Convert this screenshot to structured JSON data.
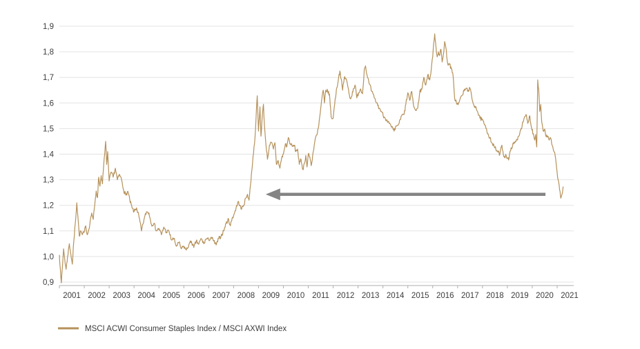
{
  "chart_data": {
    "type": "line",
    "title": "",
    "xlabel": "",
    "ylabel": "",
    "x_axis": {
      "tick_years": [
        2001,
        2002,
        2003,
        2004,
        2005,
        2006,
        2007,
        2008,
        2009,
        2010,
        2011,
        2012,
        2013,
        2014,
        2015,
        2016,
        2017,
        2018,
        2019,
        2020,
        2021
      ],
      "labels": [
        "2001",
        "2002",
        "2003",
        "2004",
        "2005",
        "2006",
        "2007",
        "2008",
        "2009",
        "2010",
        "2011",
        "2012",
        "2013",
        "2014",
        "2015",
        "2016",
        "2017",
        "2018",
        "2019",
        "2020",
        "2021"
      ],
      "range": [
        2001,
        2021.7
      ]
    },
    "y_axis": {
      "tick_values": [
        0.9,
        1.0,
        1.1,
        1.2,
        1.3,
        1.4,
        1.5,
        1.6,
        1.7,
        1.8,
        1.9
      ],
      "labels": [
        "0,9",
        "1,0",
        "1,1",
        "1,2",
        "1,3",
        "1,4",
        "1,5",
        "1,6",
        "1,7",
        "1,8",
        "1,9"
      ],
      "range": [
        0.885,
        1.9
      ],
      "grid": true
    },
    "legend": {
      "position": "bottom-left"
    },
    "series": [
      {
        "name": "MSCI ACWI Consumer Staples Index / MSCI AXWI Index",
        "color": "#B5915A",
        "points": [
          [
            2001.0,
            1.005
          ],
          [
            2001.04,
            0.95
          ],
          [
            2001.08,
            0.897
          ],
          [
            2001.13,
            0.97
          ],
          [
            2001.17,
            1.03
          ],
          [
            2001.22,
            0.985
          ],
          [
            2001.27,
            0.95
          ],
          [
            2001.33,
            1.0
          ],
          [
            2001.4,
            1.05
          ],
          [
            2001.46,
            1.01
          ],
          [
            2001.52,
            0.97
          ],
          [
            2001.58,
            1.06
          ],
          [
            2001.64,
            1.13
          ],
          [
            2001.7,
            1.21
          ],
          [
            2001.75,
            1.15
          ],
          [
            2001.8,
            1.08
          ],
          [
            2001.86,
            1.1
          ],
          [
            2001.92,
            1.085
          ],
          [
            2002.0,
            1.095
          ],
          [
            2002.06,
            1.12
          ],
          [
            2002.12,
            1.085
          ],
          [
            2002.18,
            1.105
          ],
          [
            2002.24,
            1.14
          ],
          [
            2002.3,
            1.17
          ],
          [
            2002.36,
            1.145
          ],
          [
            2002.42,
            1.2
          ],
          [
            2002.48,
            1.256
          ],
          [
            2002.53,
            1.23
          ],
          [
            2002.58,
            1.31
          ],
          [
            2002.63,
            1.275
          ],
          [
            2002.68,
            1.316
          ],
          [
            2002.73,
            1.284
          ],
          [
            2002.78,
            1.356
          ],
          [
            2002.82,
            1.4
          ],
          [
            2002.86,
            1.45
          ],
          [
            2002.9,
            1.36
          ],
          [
            2002.94,
            1.41
          ],
          [
            2003.0,
            1.295
          ],
          [
            2003.08,
            1.33
          ],
          [
            2003.16,
            1.31
          ],
          [
            2003.25,
            1.345
          ],
          [
            2003.33,
            1.3
          ],
          [
            2003.42,
            1.32
          ],
          [
            2003.5,
            1.3
          ],
          [
            2003.58,
            1.26
          ],
          [
            2003.67,
            1.24
          ],
          [
            2003.75,
            1.255
          ],
          [
            2003.83,
            1.22
          ],
          [
            2003.92,
            1.19
          ],
          [
            2004.0,
            1.175
          ],
          [
            2004.1,
            1.19
          ],
          [
            2004.2,
            1.155
          ],
          [
            2004.3,
            1.1
          ],
          [
            2004.4,
            1.145
          ],
          [
            2004.5,
            1.175
          ],
          [
            2004.6,
            1.17
          ],
          [
            2004.7,
            1.125
          ],
          [
            2004.8,
            1.13
          ],
          [
            2004.9,
            1.1
          ],
          [
            2005.0,
            1.11
          ],
          [
            2005.1,
            1.085
          ],
          [
            2005.2,
            1.115
          ],
          [
            2005.3,
            1.095
          ],
          [
            2005.4,
            1.1
          ],
          [
            2005.5,
            1.065
          ],
          [
            2005.6,
            1.07
          ],
          [
            2005.7,
            1.04
          ],
          [
            2005.8,
            1.055
          ],
          [
            2005.9,
            1.03
          ],
          [
            2006.0,
            1.04
          ],
          [
            2006.1,
            1.025
          ],
          [
            2006.2,
            1.045
          ],
          [
            2006.3,
            1.06
          ],
          [
            2006.4,
            1.035
          ],
          [
            2006.5,
            1.06
          ],
          [
            2006.6,
            1.048
          ],
          [
            2006.7,
            1.07
          ],
          [
            2006.8,
            1.05
          ],
          [
            2006.9,
            1.07
          ],
          [
            2007.0,
            1.065
          ],
          [
            2007.1,
            1.075
          ],
          [
            2007.2,
            1.06
          ],
          [
            2007.3,
            1.045
          ],
          [
            2007.4,
            1.07
          ],
          [
            2007.5,
            1.08
          ],
          [
            2007.6,
            1.1
          ],
          [
            2007.7,
            1.13
          ],
          [
            2007.8,
            1.145
          ],
          [
            2007.87,
            1.12
          ],
          [
            2007.94,
            1.15
          ],
          [
            2008.0,
            1.16
          ],
          [
            2008.1,
            1.19
          ],
          [
            2008.2,
            1.215
          ],
          [
            2008.3,
            1.185
          ],
          [
            2008.4,
            1.2
          ],
          [
            2008.5,
            1.23
          ],
          [
            2008.56,
            1.243
          ],
          [
            2008.62,
            1.22
          ],
          [
            2008.68,
            1.28
          ],
          [
            2008.73,
            1.335
          ],
          [
            2008.78,
            1.39
          ],
          [
            2008.84,
            1.44
          ],
          [
            2008.9,
            1.535
          ],
          [
            2008.95,
            1.628
          ],
          [
            2009.0,
            1.49
          ],
          [
            2009.06,
            1.585
          ],
          [
            2009.1,
            1.47
          ],
          [
            2009.15,
            1.545
          ],
          [
            2009.2,
            1.595
          ],
          [
            2009.24,
            1.51
          ],
          [
            2009.28,
            1.46
          ],
          [
            2009.36,
            1.38
          ],
          [
            2009.44,
            1.435
          ],
          [
            2009.52,
            1.445
          ],
          [
            2009.6,
            1.42
          ],
          [
            2009.66,
            1.445
          ],
          [
            2009.72,
            1.36
          ],
          [
            2009.79,
            1.375
          ],
          [
            2009.86,
            1.345
          ],
          [
            2009.93,
            1.385
          ],
          [
            2010.0,
            1.4
          ],
          [
            2010.08,
            1.44
          ],
          [
            2010.14,
            1.43
          ],
          [
            2010.2,
            1.465
          ],
          [
            2010.28,
            1.44
          ],
          [
            2010.36,
            1.43
          ],
          [
            2010.44,
            1.435
          ],
          [
            2010.5,
            1.41
          ],
          [
            2010.57,
            1.42
          ],
          [
            2010.64,
            1.36
          ],
          [
            2010.71,
            1.38
          ],
          [
            2010.78,
            1.34
          ],
          [
            2010.85,
            1.365
          ],
          [
            2010.9,
            1.395
          ],
          [
            2010.95,
            1.35
          ],
          [
            2011.0,
            1.4
          ],
          [
            2011.06,
            1.39
          ],
          [
            2011.12,
            1.355
          ],
          [
            2011.2,
            1.41
          ],
          [
            2011.28,
            1.46
          ],
          [
            2011.35,
            1.475
          ],
          [
            2011.42,
            1.51
          ],
          [
            2011.48,
            1.56
          ],
          [
            2011.55,
            1.62
          ],
          [
            2011.6,
            1.65
          ],
          [
            2011.65,
            1.6
          ],
          [
            2011.7,
            1.65
          ],
          [
            2011.78,
            1.645
          ],
          [
            2011.85,
            1.635
          ],
          [
            2011.92,
            1.545
          ],
          [
            2012.0,
            1.54
          ],
          [
            2012.08,
            1.615
          ],
          [
            2012.15,
            1.66
          ],
          [
            2012.22,
            1.7
          ],
          [
            2012.27,
            1.725
          ],
          [
            2012.32,
            1.695
          ],
          [
            2012.38,
            1.65
          ],
          [
            2012.45,
            1.7
          ],
          [
            2012.52,
            1.695
          ],
          [
            2012.6,
            1.66
          ],
          [
            2012.67,
            1.62
          ],
          [
            2012.74,
            1.625
          ],
          [
            2012.81,
            1.655
          ],
          [
            2012.88,
            1.67
          ],
          [
            2012.95,
            1.62
          ],
          [
            2013.02,
            1.64
          ],
          [
            2013.1,
            1.655
          ],
          [
            2013.18,
            1.636
          ],
          [
            2013.25,
            1.73
          ],
          [
            2013.3,
            1.745
          ],
          [
            2013.38,
            1.7
          ],
          [
            2013.45,
            1.675
          ],
          [
            2013.55,
            1.645
          ],
          [
            2013.65,
            1.62
          ],
          [
            2013.75,
            1.6
          ],
          [
            2013.85,
            1.58
          ],
          [
            2013.95,
            1.565
          ],
          [
            2014.05,
            1.545
          ],
          [
            2014.15,
            1.535
          ],
          [
            2014.25,
            1.52
          ],
          [
            2014.35,
            1.505
          ],
          [
            2014.45,
            1.49
          ],
          [
            2014.55,
            1.51
          ],
          [
            2014.65,
            1.52
          ],
          [
            2014.75,
            1.55
          ],
          [
            2014.85,
            1.555
          ],
          [
            2014.92,
            1.595
          ],
          [
            2015.0,
            1.64
          ],
          [
            2015.08,
            1.61
          ],
          [
            2015.16,
            1.645
          ],
          [
            2015.24,
            1.585
          ],
          [
            2015.32,
            1.57
          ],
          [
            2015.4,
            1.58
          ],
          [
            2015.48,
            1.645
          ],
          [
            2015.56,
            1.653
          ],
          [
            2015.64,
            1.7
          ],
          [
            2015.72,
            1.67
          ],
          [
            2015.8,
            1.71
          ],
          [
            2015.88,
            1.69
          ],
          [
            2015.94,
            1.73
          ],
          [
            2016.0,
            1.78
          ],
          [
            2016.04,
            1.834
          ],
          [
            2016.08,
            1.87
          ],
          [
            2016.13,
            1.82
          ],
          [
            2016.18,
            1.78
          ],
          [
            2016.23,
            1.8
          ],
          [
            2016.28,
            1.785
          ],
          [
            2016.33,
            1.81
          ],
          [
            2016.38,
            1.76
          ],
          [
            2016.43,
            1.79
          ],
          [
            2016.48,
            1.84
          ],
          [
            2016.53,
            1.815
          ],
          [
            2016.6,
            1.755
          ],
          [
            2016.68,
            1.75
          ],
          [
            2016.75,
            1.733
          ],
          [
            2016.82,
            1.705
          ],
          [
            2016.88,
            1.62
          ],
          [
            2016.95,
            1.603
          ],
          [
            2017.02,
            1.593
          ],
          [
            2017.1,
            1.615
          ],
          [
            2017.18,
            1.63
          ],
          [
            2017.26,
            1.647
          ],
          [
            2017.34,
            1.657
          ],
          [
            2017.42,
            1.65
          ],
          [
            2017.5,
            1.657
          ],
          [
            2017.58,
            1.615
          ],
          [
            2017.66,
            1.59
          ],
          [
            2017.74,
            1.585
          ],
          [
            2017.82,
            1.56
          ],
          [
            2017.9,
            1.54
          ],
          [
            2017.98,
            1.535
          ],
          [
            2018.06,
            1.52
          ],
          [
            2018.14,
            1.5
          ],
          [
            2018.22,
            1.48
          ],
          [
            2018.3,
            1.465
          ],
          [
            2018.4,
            1.44
          ],
          [
            2018.5,
            1.425
          ],
          [
            2018.6,
            1.41
          ],
          [
            2018.7,
            1.4
          ],
          [
            2018.78,
            1.435
          ],
          [
            2018.86,
            1.39
          ],
          [
            2018.95,
            1.395
          ],
          [
            2019.05,
            1.377
          ],
          [
            2019.15,
            1.425
          ],
          [
            2019.25,
            1.44
          ],
          [
            2019.35,
            1.45
          ],
          [
            2019.45,
            1.47
          ],
          [
            2019.55,
            1.5
          ],
          [
            2019.65,
            1.53
          ],
          [
            2019.75,
            1.555
          ],
          [
            2019.82,
            1.52
          ],
          [
            2019.9,
            1.55
          ],
          [
            2019.97,
            1.504
          ],
          [
            2020.04,
            1.48
          ],
          [
            2020.1,
            1.455
          ],
          [
            2020.14,
            1.477
          ],
          [
            2020.18,
            1.428
          ],
          [
            2020.22,
            1.69
          ],
          [
            2020.26,
            1.652
          ],
          [
            2020.3,
            1.567
          ],
          [
            2020.34,
            1.594
          ],
          [
            2020.38,
            1.526
          ],
          [
            2020.44,
            1.49
          ],
          [
            2020.5,
            1.498
          ],
          [
            2020.56,
            1.468
          ],
          [
            2020.62,
            1.47
          ],
          [
            2020.68,
            1.455
          ],
          [
            2020.74,
            1.462
          ],
          [
            2020.8,
            1.434
          ],
          [
            2020.86,
            1.412
          ],
          [
            2020.92,
            1.394
          ],
          [
            2020.98,
            1.345
          ],
          [
            2021.04,
            1.3
          ],
          [
            2021.1,
            1.26
          ],
          [
            2021.15,
            1.228
          ],
          [
            2021.2,
            1.245
          ],
          [
            2021.24,
            1.272
          ]
        ],
        "render_noise": {
          "amplitude": 0.0075,
          "seed": 7,
          "samples_per_year": 52
        }
      }
    ],
    "annotations": [
      {
        "type": "arrow",
        "direction": "left",
        "value": 1.243,
        "year_tip": 2009.29,
        "year_tail": 2020.53,
        "color": "#848484"
      }
    ]
  },
  "colors": {
    "background": "#ffffff",
    "gridline": "#e3e3e3",
    "axis": "#adadad",
    "tick_text": "#3c3c3c",
    "series_line": "#B5915A",
    "arrow": "#848484"
  },
  "legend": {
    "swatch": "line-swatch",
    "label": "MSCI ACWI Consumer Staples Index / MSCI AXWI Index"
  }
}
